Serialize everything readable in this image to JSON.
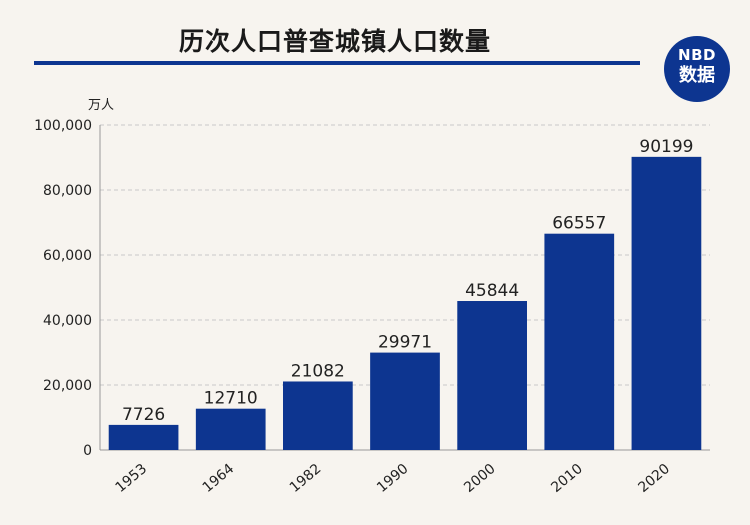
{
  "header": {
    "title": "历次人口普查城镇人口数量"
  },
  "logo": {
    "line1": "NBD",
    "line2": "数据",
    "color": "#0d3590"
  },
  "chart_data": {
    "type": "bar",
    "title": "历次人口普查城镇人口数量",
    "unit": "万人",
    "categories": [
      "1953",
      "1964",
      "1982",
      "1990",
      "2000",
      "2010",
      "2020"
    ],
    "values": [
      7726,
      12710,
      21082,
      29971,
      45844,
      66557,
      90199
    ],
    "ylim": [
      0,
      100000
    ],
    "yticks": [
      "0",
      "20,000",
      "40,000",
      "60,000",
      "80,000",
      "100,000"
    ],
    "ytick_values": [
      0,
      20000,
      40000,
      60000,
      80000,
      100000
    ],
    "grid": true,
    "bar_color": "#0d3590"
  }
}
